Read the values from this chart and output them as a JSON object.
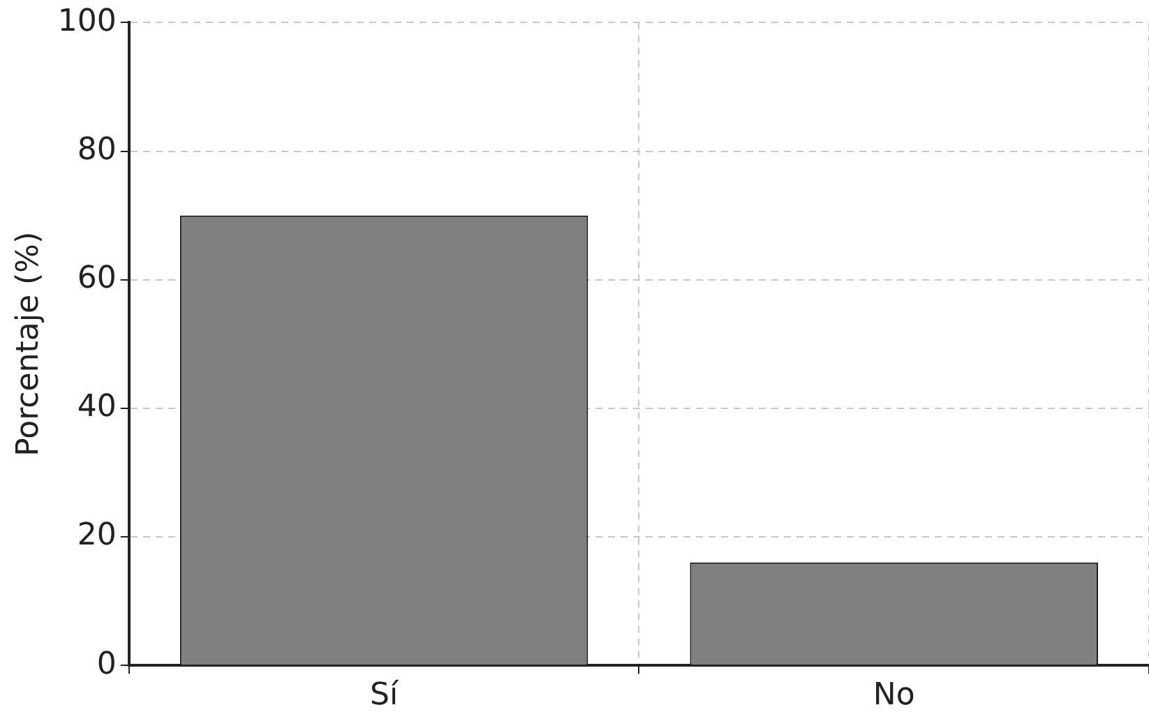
{
  "chart_data": {
    "type": "bar",
    "ylabel": "Porcentaje (%)",
    "categories": [
      "Sí",
      "No"
    ],
    "values": [
      70,
      16
    ],
    "color": "#808080",
    "ylim": [
      0,
      100
    ],
    "yticks": [
      0,
      20,
      40,
      60,
      80,
      100
    ],
    "grid": true,
    "legend": false
  }
}
